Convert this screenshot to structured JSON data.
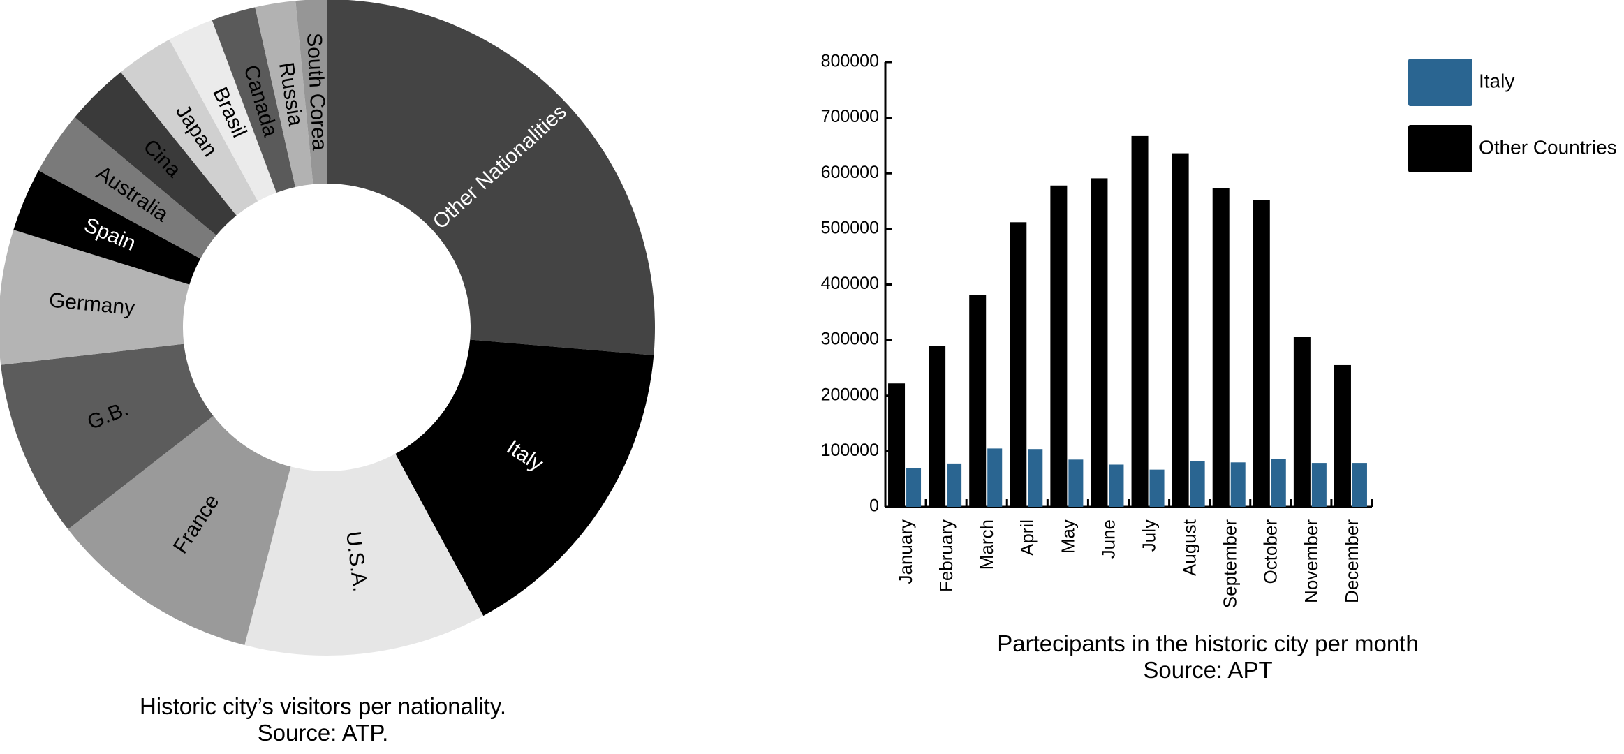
{
  "chart_data": [
    {
      "type": "pie",
      "donut": true,
      "title": "Historic city’s visitors per nationality.",
      "subtitle": "Source: ATP.",
      "slices": [
        {
          "label": "Other Nationalities",
          "value": 27.8,
          "color": "#444444",
          "text_color": "#ffffff"
        },
        {
          "label": "Italy",
          "value": 16.6,
          "color": "#000000",
          "text_color": "#ffffff"
        },
        {
          "label": "U.S.A.",
          "value": 12.6,
          "color": "#e6e6e6",
          "text_color": "#000000"
        },
        {
          "label": "France",
          "value": 11.0,
          "color": "#9a9a9a",
          "text_color": "#000000"
        },
        {
          "label": "G.B.",
          "value": 9.2,
          "color": "#5c5c5c",
          "text_color": "#000000"
        },
        {
          "label": "Germany",
          "value": 7.0,
          "color": "#b4b4b4",
          "text_color": "#000000"
        },
        {
          "label": "Spain",
          "value": 3.3,
          "color": "#000000",
          "text_color": "#ffffff"
        },
        {
          "label": "Australia",
          "value": 3.3,
          "color": "#7a7a7a",
          "text_color": "#000000"
        },
        {
          "label": "Cina",
          "value": 3.3,
          "color": "#3a3a3a",
          "text_color": "#000000"
        },
        {
          "label": "Japan",
          "value": 3.0,
          "color": "#d0d0d0",
          "text_color": "#000000"
        },
        {
          "label": "Brasil",
          "value": 2.4,
          "color": "#ebebeb",
          "text_color": "#000000"
        },
        {
          "label": "Canada",
          "value": 2.3,
          "color": "#5a5a5a",
          "text_color": "#000000"
        },
        {
          "label": "Russia",
          "value": 2.1,
          "color": "#b2b2b2",
          "text_color": "#000000"
        },
        {
          "label": "South Corea",
          "value": 1.6,
          "color": "#969696",
          "text_color": "#000000"
        }
      ]
    },
    {
      "type": "bar",
      "title": "Partecipants in the historic city per month",
      "subtitle": "Source: APT",
      "categories": [
        "January",
        "February",
        "March",
        "April",
        "May",
        "June",
        "July",
        "August",
        "September",
        "October",
        "November",
        "December"
      ],
      "series": [
        {
          "name": "Italy",
          "color": "#2a6591",
          "values": [
            70000,
            78000,
            105000,
            104000,
            85000,
            76000,
            67000,
            82000,
            80000,
            86000,
            79000,
            79000
          ]
        },
        {
          "name": "Other Countries",
          "color": "#000000",
          "values": [
            222000,
            290000,
            381000,
            512000,
            578000,
            591000,
            667000,
            636000,
            573000,
            552000,
            306000,
            255000
          ]
        }
      ],
      "ylim": [
        0,
        800000
      ],
      "yticks": [
        "0",
        "100000",
        "200000",
        "300000",
        "400000",
        "500000",
        "600000",
        "700000",
        "800000"
      ],
      "xlabel": "",
      "ylabel": "",
      "legend_position": "top-right",
      "grid": false
    }
  ]
}
